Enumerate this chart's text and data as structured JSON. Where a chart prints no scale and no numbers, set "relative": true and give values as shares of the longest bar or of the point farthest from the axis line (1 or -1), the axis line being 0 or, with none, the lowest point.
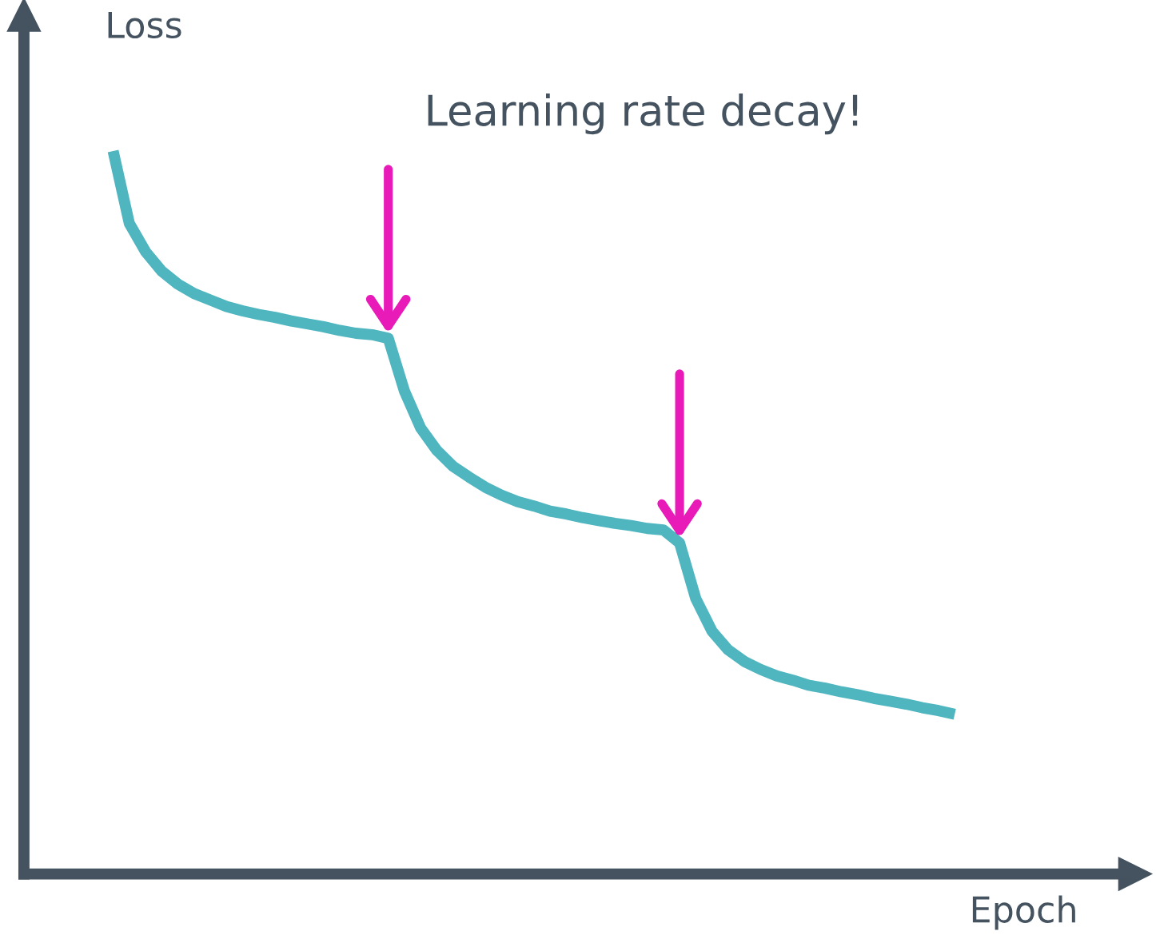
{
  "chart_data": {
    "type": "line",
    "relative": true,
    "xlabel": "Epoch",
    "ylabel": "Loss",
    "annotations": [
      "Learning rate decay!"
    ],
    "categories": [
      null,
      null,
      null,
      null,
      null,
      null,
      null,
      null,
      null,
      null,
      null,
      null,
      null,
      null,
      null,
      null,
      null,
      null,
      null,
      null,
      null,
      null,
      null,
      null,
      null,
      null,
      null,
      null,
      null,
      null,
      null,
      null,
      null,
      null,
      null,
      null,
      null,
      null,
      null,
      null,
      null,
      null,
      null,
      null,
      null,
      null,
      null,
      null,
      null,
      null,
      null,
      null,
      null
    ],
    "series": [
      {
        "color": "#4fb6c0",
        "values": [
          1.0,
          0.9,
          0.861,
          0.834,
          0.816,
          0.803,
          0.794,
          0.785,
          0.779,
          0.774,
          0.77,
          0.765,
          0.761,
          0.757,
          0.752,
          0.748,
          0.746,
          0.741,
          0.668,
          0.617,
          0.586,
          0.564,
          0.549,
          0.535,
          0.524,
          0.515,
          0.509,
          0.502,
          0.498,
          0.493,
          0.489,
          0.485,
          0.482,
          0.478,
          0.476,
          0.458,
          0.381,
          0.336,
          0.31,
          0.294,
          0.283,
          0.274,
          0.268,
          0.261,
          0.257,
          0.252,
          0.248,
          0.243,
          0.239,
          0.235,
          0.23,
          0.226,
          0.221
        ]
      }
    ]
  }
}
